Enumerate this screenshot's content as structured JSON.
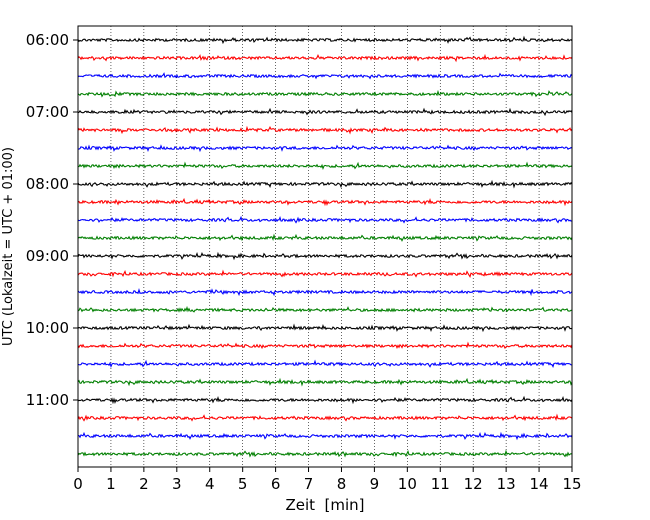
{
  "chart_data": {
    "type": "line",
    "title": "",
    "xlabel": "Zeit  [min]",
    "ylabel": "UTC (Lokalzeit = UTC + 01:00)",
    "xlim": [
      0,
      15
    ],
    "x_ticks": [
      "0",
      "1",
      "2",
      "3",
      "4",
      "5",
      "6",
      "7",
      "8",
      "9",
      "10",
      "11",
      "12",
      "13",
      "14",
      "15"
    ],
    "y_ticks": [
      "06:00",
      "07:00",
      "08:00",
      "09:00",
      "10:00",
      "11:00"
    ],
    "grid": "vertical dotted",
    "trace_colors": [
      "#000000",
      "#ff0000",
      "#0000ff",
      "#007f00"
    ],
    "traces": [
      {
        "start": "06:00",
        "color": "#000000"
      },
      {
        "start": "06:15",
        "color": "#ff0000"
      },
      {
        "start": "06:30",
        "color": "#0000ff"
      },
      {
        "start": "06:45",
        "color": "#007f00"
      },
      {
        "start": "07:00",
        "color": "#000000"
      },
      {
        "start": "07:15",
        "color": "#ff0000"
      },
      {
        "start": "07:30",
        "color": "#0000ff"
      },
      {
        "start": "07:45",
        "color": "#007f00"
      },
      {
        "start": "08:00",
        "color": "#000000"
      },
      {
        "start": "08:15",
        "color": "#ff0000"
      },
      {
        "start": "08:30",
        "color": "#0000ff"
      },
      {
        "start": "08:45",
        "color": "#007f00"
      },
      {
        "start": "09:00",
        "color": "#000000"
      },
      {
        "start": "09:15",
        "color": "#ff0000"
      },
      {
        "start": "09:30",
        "color": "#0000ff"
      },
      {
        "start": "09:45",
        "color": "#007f00"
      },
      {
        "start": "10:00",
        "color": "#000000"
      },
      {
        "start": "10:15",
        "color": "#ff0000"
      },
      {
        "start": "10:30",
        "color": "#0000ff"
      },
      {
        "start": "10:45",
        "color": "#007f00"
      },
      {
        "start": "11:00",
        "color": "#000000"
      },
      {
        "start": "11:15",
        "color": "#ff0000"
      },
      {
        "start": "11:30",
        "color": "#0000ff"
      },
      {
        "start": "11:45",
        "color": "#007f00"
      }
    ]
  }
}
